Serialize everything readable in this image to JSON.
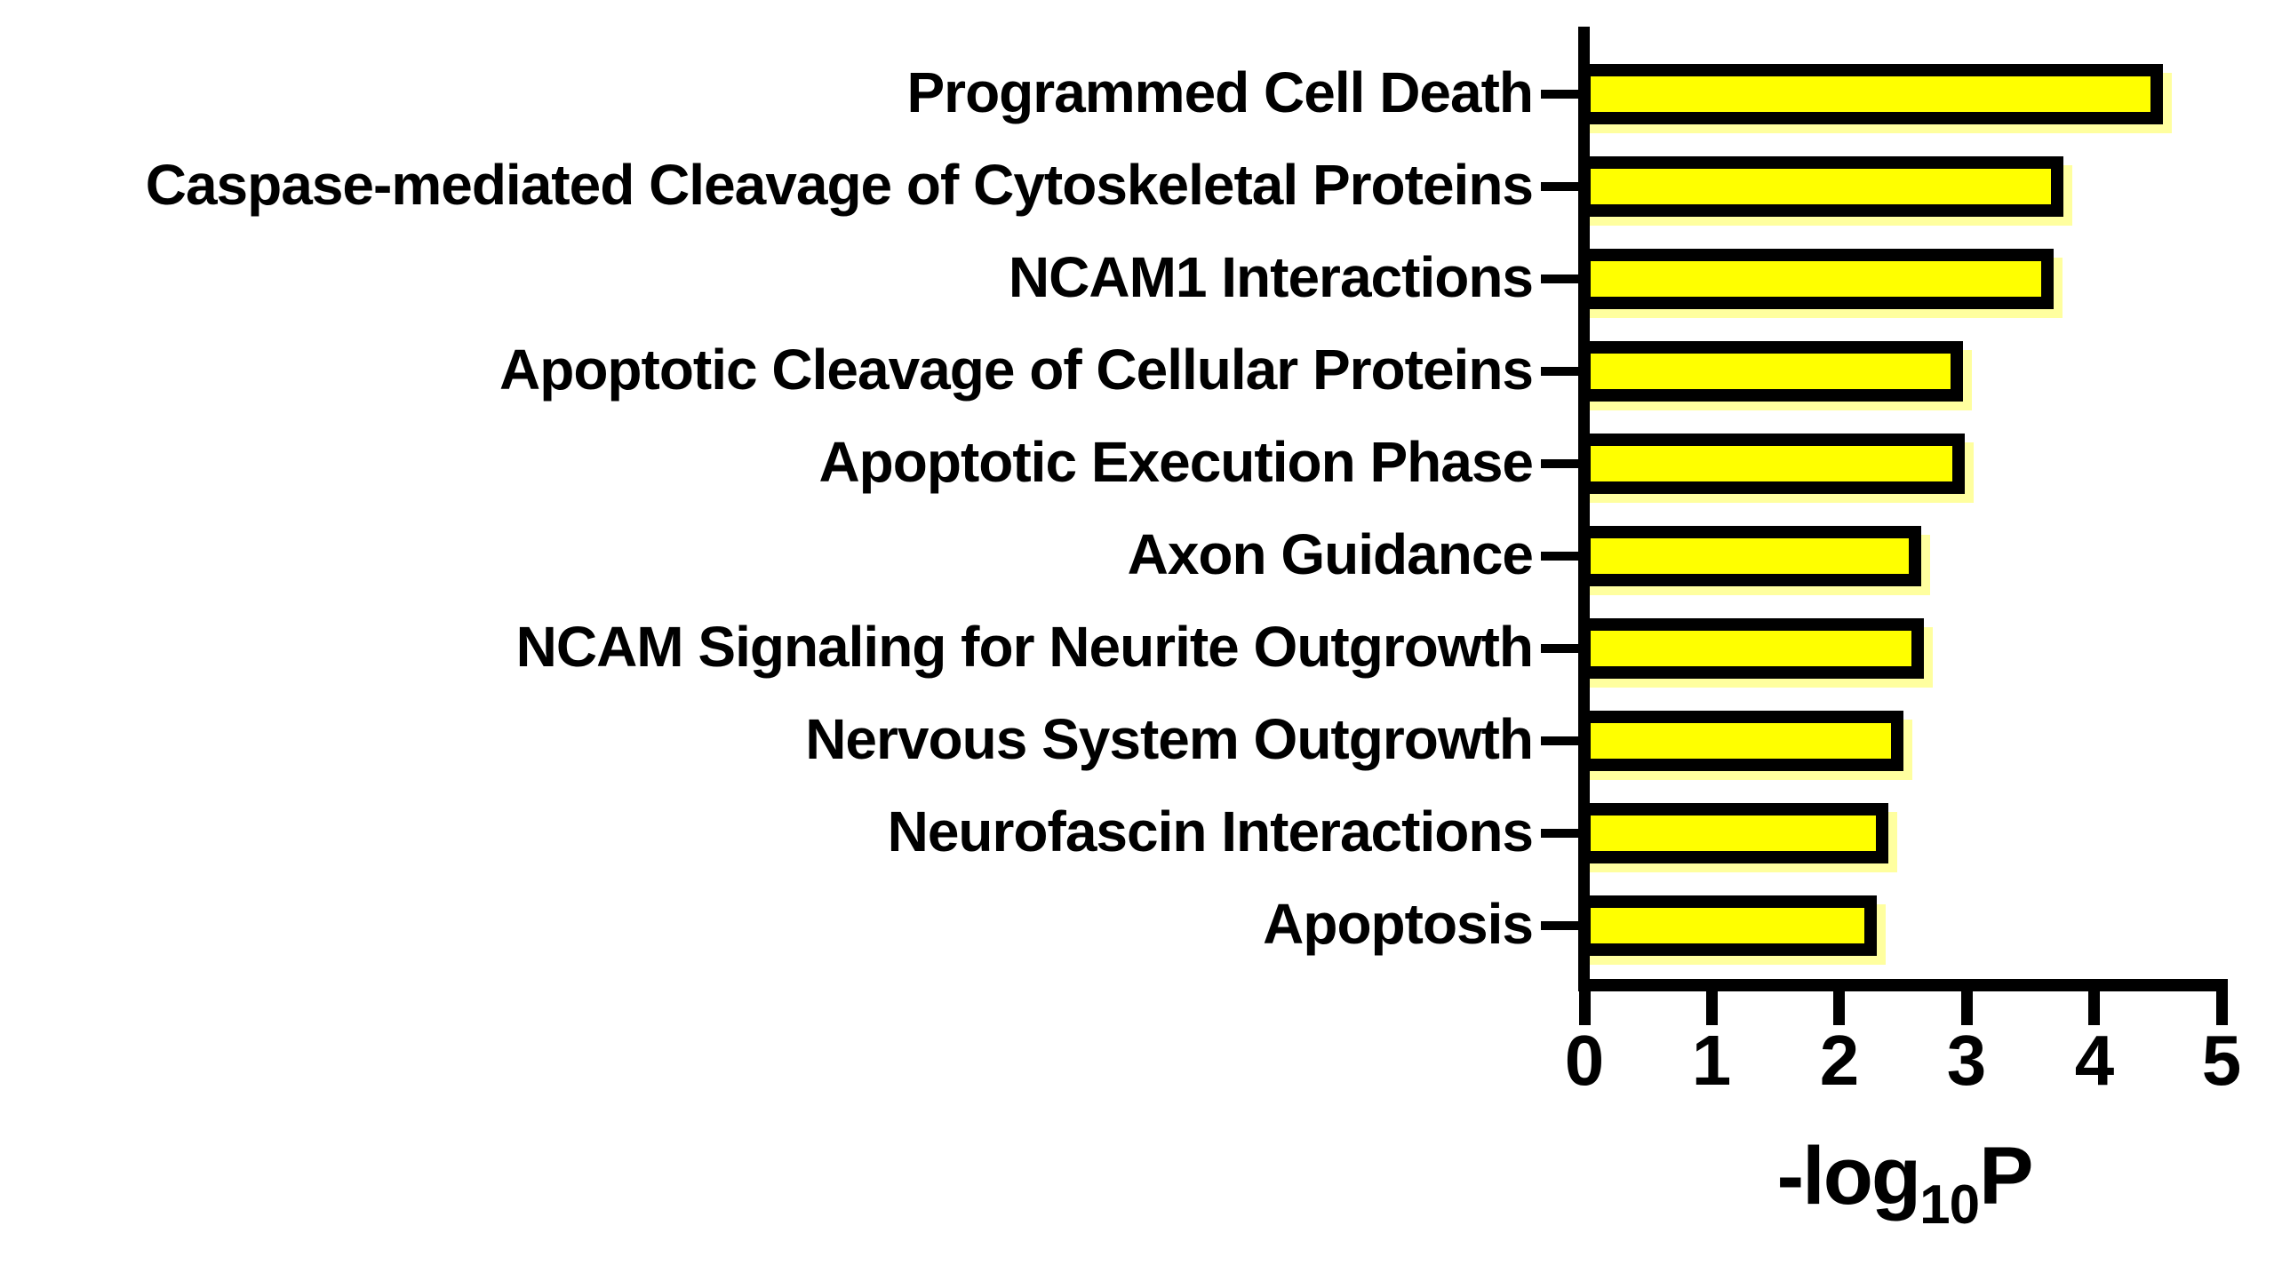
{
  "figure": {
    "background": "#ffffff"
  },
  "chart_data": {
    "type": "bar",
    "orientation": "horizontal",
    "title": "",
    "xlabel": "-log10P",
    "xlabel_parts": {
      "prefix": "-log",
      "sub": "10",
      "suffix": "P"
    },
    "ylabel": "",
    "xlim": [
      0,
      5
    ],
    "xticks": [
      0,
      1,
      2,
      3,
      4,
      5
    ],
    "grid": false,
    "legend_position": "none",
    "bar_color": "#ffff00",
    "bar_border_color": "#000000",
    "categories": [
      "Programmed Cell Death",
      "Caspase-mediated Cleavage of Cytoskeletal Proteins",
      "NCAM1 Interactions",
      "Apoptotic Cleavage of Cellular Proteins",
      "Apoptotic Execution Phase",
      "Axon Guidance",
      "NCAM Signaling for Neurite Outgrowth",
      "Nervous System Outgrowth",
      "Neurofascin Interactions",
      "Apoptosis"
    ],
    "values": [
      4.5,
      3.72,
      3.64,
      2.93,
      2.94,
      2.6,
      2.62,
      2.46,
      2.34,
      2.25
    ]
  }
}
